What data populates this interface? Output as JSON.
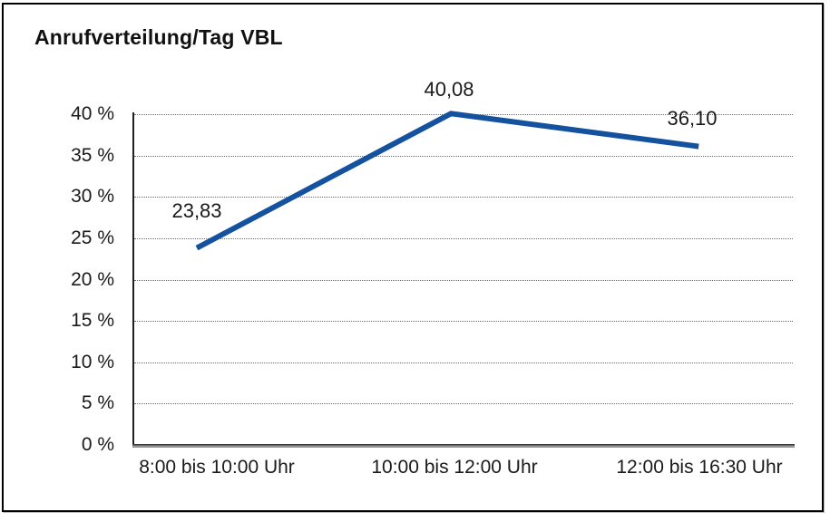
{
  "page": {
    "background": "#ffffff",
    "frame_border_color": "#000000"
  },
  "chart_data": {
    "type": "line",
    "title": "Anrufverteilung/Tag VBL",
    "categories": [
      "8:00 bis 10:00 Uhr",
      "10:00 bis 12:00 Uhr",
      "12:00 bis 16:30 Uhr"
    ],
    "values": [
      23.83,
      40.08,
      36.1
    ],
    "point_labels": [
      "23,83",
      "40,08",
      "36,10"
    ],
    "xlabel": "",
    "ylabel": "",
    "ylim": [
      0,
      40
    ],
    "ytick_step": 5,
    "ytick_labels": [
      "0 %",
      "5 %",
      "10 %",
      "15 %",
      "20 %",
      "25 %",
      "30 %",
      "35 %",
      "40 %"
    ],
    "grid": "horizontal-dotted",
    "legend_position": "none",
    "line_color": "#14519E"
  }
}
